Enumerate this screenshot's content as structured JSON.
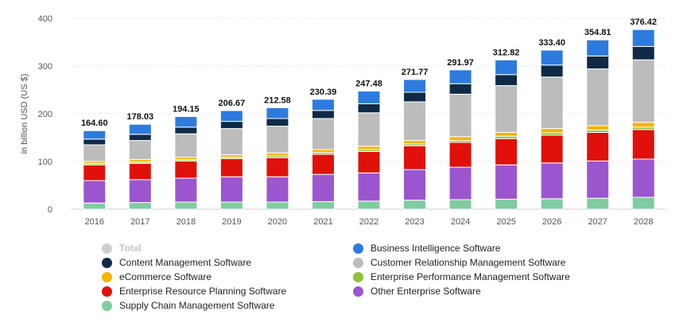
{
  "chart_data": {
    "type": "bar",
    "stacked": true,
    "title": "",
    "xlabel": "",
    "ylabel": "in billion USD (US $)",
    "ylim": [
      0,
      400
    ],
    "yticks": [
      "0",
      "100",
      "200",
      "300",
      "400"
    ],
    "grid": true,
    "legend_position": "bottom",
    "categories": [
      "2016",
      "2017",
      "2018",
      "2019",
      "2020",
      "2021",
      "2022",
      "2023",
      "2024",
      "2025",
      "2026",
      "2027",
      "2028"
    ],
    "totals": [
      164.6,
      178.03,
      194.15,
      206.67,
      212.58,
      230.39,
      247.48,
      271.77,
      291.97,
      312.82,
      333.4,
      354.81,
      376.42
    ],
    "total_labels": [
      "164.60",
      "178.03",
      "194.15",
      "206.67",
      "212.58",
      "230.39",
      "247.48",
      "271.77",
      "291.97",
      "312.82",
      "333.40",
      "354.81",
      "376.42"
    ],
    "series": [
      {
        "name": "Supply Chain Management Software",
        "color": "#7fcca0",
        "values": [
          13,
          14,
          15,
          15,
          15,
          16,
          17,
          19,
          20,
          21,
          22,
          23,
          25
        ]
      },
      {
        "name": "Other Enterprise Software",
        "color": "#9b56cf",
        "values": [
          47,
          48,
          50,
          53,
          53,
          57,
          59,
          64,
          68,
          72,
          75,
          78,
          80
        ]
      },
      {
        "name": "Enterprise Resource Planning Software",
        "color": "#e0110b",
        "values": [
          33,
          34,
          36,
          38,
          40,
          42,
          45,
          50,
          52,
          55,
          58,
          60,
          62
        ]
      },
      {
        "name": "Enterprise Performance Management Software",
        "color": "#8cc43a",
        "values": [
          3,
          3,
          3,
          3,
          4,
          4,
          4,
          4,
          4,
          5,
          5,
          5,
          5
        ]
      },
      {
        "name": "eCommerce Software",
        "color": "#f4b400",
        "values": [
          4,
          5,
          5,
          5,
          6,
          6,
          7,
          7,
          8,
          8,
          9,
          9,
          10
        ]
      },
      {
        "name": "Customer Relationship Management Software",
        "color": "#bcbcbc",
        "values": [
          35,
          40,
          49,
          55,
          56,
          65,
          70,
          81,
          89,
          98,
          108,
          119,
          131
        ]
      },
      {
        "name": "Content Management Software",
        "color": "#0e2a47",
        "values": [
          12,
          13,
          14,
          15,
          16,
          17,
          19,
          20,
          22,
          23,
          25,
          27,
          28
        ]
      },
      {
        "name": "Business Intelligence Software",
        "color": "#2d7bde",
        "values": [
          17.6,
          21.03,
          22.15,
          22.67,
          22.58,
          23.39,
          26.48,
          26.77,
          28.97,
          30.82,
          31.4,
          33.81,
          35.42
        ]
      }
    ]
  },
  "legend": [
    {
      "label": "Total",
      "color": "#cfcfcf",
      "disabled": true
    },
    {
      "label": "Business Intelligence Software",
      "color": "#2d7bde",
      "disabled": false
    },
    {
      "label": "Content Management Software",
      "color": "#0e2a47",
      "disabled": false
    },
    {
      "label": "Customer Relationship Management Software",
      "color": "#bcbcbc",
      "disabled": false
    },
    {
      "label": "eCommerce Software",
      "color": "#f4b400",
      "disabled": false
    },
    {
      "label": "Enterprise Performance Management Software",
      "color": "#8cc43a",
      "disabled": false
    },
    {
      "label": "Enterprise Resource Planning Software",
      "color": "#e0110b",
      "disabled": false
    },
    {
      "label": "Other Enterprise Software",
      "color": "#9b56cf",
      "disabled": false
    },
    {
      "label": "Supply Chain Management Software",
      "color": "#7fcca0",
      "disabled": false
    }
  ]
}
